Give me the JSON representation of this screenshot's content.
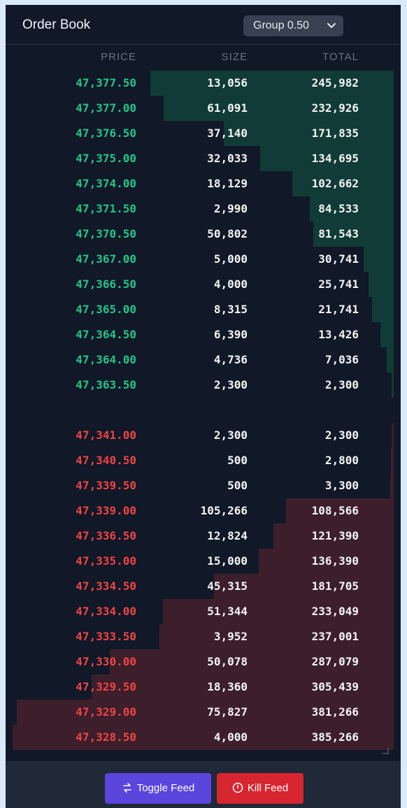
{
  "header": {
    "title": "Order Book",
    "group_label": "Group 0.50"
  },
  "columns": {
    "price": "PRICE",
    "size": "SIZE",
    "total": "TOTAL"
  },
  "max_total": 385266,
  "bids": [
    {
      "price": "47,377.50",
      "size": "13,056",
      "total": "245,982",
      "depth": 245982
    },
    {
      "price": "47,377.00",
      "size": "61,091",
      "total": "232,926",
      "depth": 232926
    },
    {
      "price": "47,376.50",
      "size": "37,140",
      "total": "171,835",
      "depth": 171835
    },
    {
      "price": "47,375.00",
      "size": "32,033",
      "total": "134,695",
      "depth": 134695
    },
    {
      "price": "47,374.00",
      "size": "18,129",
      "total": "102,662",
      "depth": 102662
    },
    {
      "price": "47,371.50",
      "size": "2,990",
      "total": "84,533",
      "depth": 84533
    },
    {
      "price": "47,370.50",
      "size": "50,802",
      "total": "81,543",
      "depth": 81543
    },
    {
      "price": "47,367.00",
      "size": "5,000",
      "total": "30,741",
      "depth": 30741
    },
    {
      "price": "47,366.50",
      "size": "4,000",
      "total": "25,741",
      "depth": 25741
    },
    {
      "price": "47,365.00",
      "size": "8,315",
      "total": "21,741",
      "depth": 21741
    },
    {
      "price": "47,364.50",
      "size": "6,390",
      "total": "13,426",
      "depth": 13426
    },
    {
      "price": "47,364.00",
      "size": "4,736",
      "total": "7,036",
      "depth": 7036
    },
    {
      "price": "47,363.50",
      "size": "2,300",
      "total": "2,300",
      "depth": 2300
    }
  ],
  "asks": [
    {
      "price": "47,341.00",
      "size": "2,300",
      "total": "2,300",
      "depth": 2300
    },
    {
      "price": "47,340.50",
      "size": "500",
      "total": "2,800",
      "depth": 2800
    },
    {
      "price": "47,339.50",
      "size": "500",
      "total": "3,300",
      "depth": 3300
    },
    {
      "price": "47,339.00",
      "size": "105,266",
      "total": "108,566",
      "depth": 108566
    },
    {
      "price": "47,336.50",
      "size": "12,824",
      "total": "121,390",
      "depth": 121390
    },
    {
      "price": "47,335.00",
      "size": "15,000",
      "total": "136,390",
      "depth": 136390
    },
    {
      "price": "47,334.50",
      "size": "45,315",
      "total": "181,705",
      "depth": 181705
    },
    {
      "price": "47,334.00",
      "size": "51,344",
      "total": "233,049",
      "depth": 233049
    },
    {
      "price": "47,333.50",
      "size": "3,952",
      "total": "237,001",
      "depth": 237001
    },
    {
      "price": "47,330.00",
      "size": "50,078",
      "total": "287,079",
      "depth": 287079
    },
    {
      "price": "47,329.50",
      "size": "18,360",
      "total": "305,439",
      "depth": 305439
    },
    {
      "price": "47,329.00",
      "size": "75,827",
      "total": "381,266",
      "depth": 381266
    },
    {
      "price": "47,328.50",
      "size": "4,000",
      "total": "385,266",
      "depth": 385266
    }
  ],
  "footer": {
    "toggle_label": "Toggle Feed",
    "kill_label": "Kill Feed"
  },
  "colors": {
    "bid_price": "#22c58a",
    "ask_price": "#ef4444",
    "bid_depth": "#113b36",
    "ask_depth": "#3d1f2b",
    "toggle_button": "#5b45dc",
    "kill_button": "#d7262f",
    "background": "#111827"
  },
  "icons": {
    "group_select": "chevron-down-icon",
    "toggle_button": "swap-arrows-icon",
    "kill_button": "power-circle-icon"
  }
}
